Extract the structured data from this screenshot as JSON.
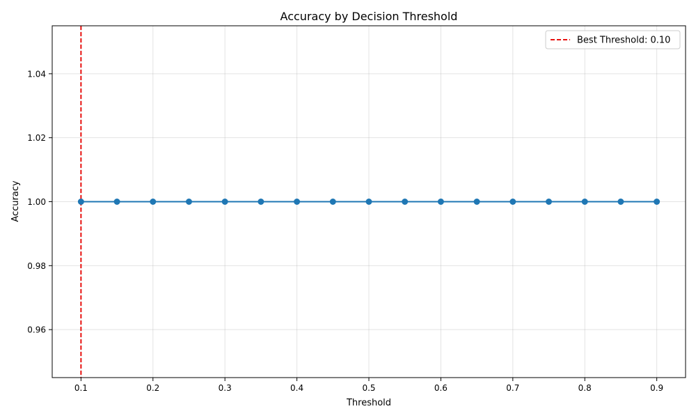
{
  "chart_data": {
    "type": "line",
    "title": "Accuracy by Decision Threshold",
    "xlabel": "Threshold",
    "ylabel": "Accuracy",
    "xlim": [
      0.06,
      0.94
    ],
    "ylim": [
      0.945,
      1.055
    ],
    "xticks": [
      0.1,
      0.2,
      0.3,
      0.4,
      0.5,
      0.6,
      0.7,
      0.8,
      0.9
    ],
    "xtick_labels": [
      "0.1",
      "0.2",
      "0.3",
      "0.4",
      "0.5",
      "0.6",
      "0.7",
      "0.8",
      "0.9"
    ],
    "yticks": [
      0.96,
      0.98,
      1.0,
      1.02,
      1.04
    ],
    "ytick_labels": [
      "0.96",
      "0.98",
      "1.00",
      "1.02",
      "1.04"
    ],
    "grid": true,
    "series": [
      {
        "x": [
          0.1,
          0.15,
          0.2,
          0.25,
          0.3,
          0.35,
          0.4,
          0.45,
          0.5,
          0.55,
          0.6,
          0.65,
          0.7,
          0.75,
          0.8,
          0.85,
          0.9
        ],
        "values": [
          1.0,
          1.0,
          1.0,
          1.0,
          1.0,
          1.0,
          1.0,
          1.0,
          1.0,
          1.0,
          1.0,
          1.0,
          1.0,
          1.0,
          1.0,
          1.0,
          1.0
        ],
        "color": "#1f77b4",
        "marker": "circle"
      }
    ],
    "reference_line": {
      "orientation": "vertical",
      "x": 0.1,
      "style": "dashed",
      "color": "#e8110f",
      "label": "Best Threshold: 0.10"
    },
    "legend": {
      "position": "top-right"
    }
  }
}
